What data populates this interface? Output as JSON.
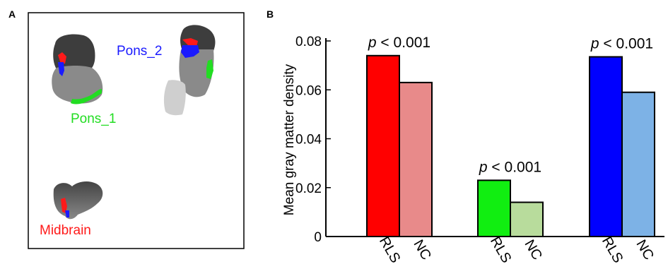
{
  "panel_a": {
    "letter": "A",
    "labels": [
      {
        "key": "pons_1",
        "text": "Pons_1",
        "color": "#22dd22"
      },
      {
        "key": "pons_2",
        "text": "Pons_2",
        "color": "#1a1aff"
      },
      {
        "key": "midbrain",
        "text": "Midbrain",
        "color": "#ff1a1a"
      }
    ]
  },
  "panel_b": {
    "letter": "B"
  },
  "chart_data": {
    "type": "bar",
    "title": "",
    "ylabel": "Mean gray matter density",
    "xlabel": "",
    "ylim": [
      0,
      0.08
    ],
    "yticks": [
      "0",
      "0.02",
      "0.04",
      "0.06",
      "0.08"
    ],
    "ytick_values": [
      0,
      0.02,
      0.04,
      0.06,
      0.08
    ],
    "groups": [
      {
        "p_label": "p < 0.001",
        "bars": [
          {
            "category": "RLS",
            "value": 0.074,
            "color": "#ff0000"
          },
          {
            "category": "NC",
            "value": 0.063,
            "color": "#e88a8a"
          }
        ]
      },
      {
        "p_label": "p < 0.001",
        "bars": [
          {
            "category": "RLS",
            "value": 0.023,
            "color": "#11ee11"
          },
          {
            "category": "NC",
            "value": 0.014,
            "color": "#b8dc9c"
          }
        ]
      },
      {
        "p_label": "p < 0.001",
        "bars": [
          {
            "category": "RLS",
            "value": 0.0735,
            "color": "#0000ff"
          },
          {
            "category": "NC",
            "value": 0.059,
            "color": "#7db2e6"
          }
        ]
      }
    ],
    "grid": false,
    "legend": "none"
  }
}
